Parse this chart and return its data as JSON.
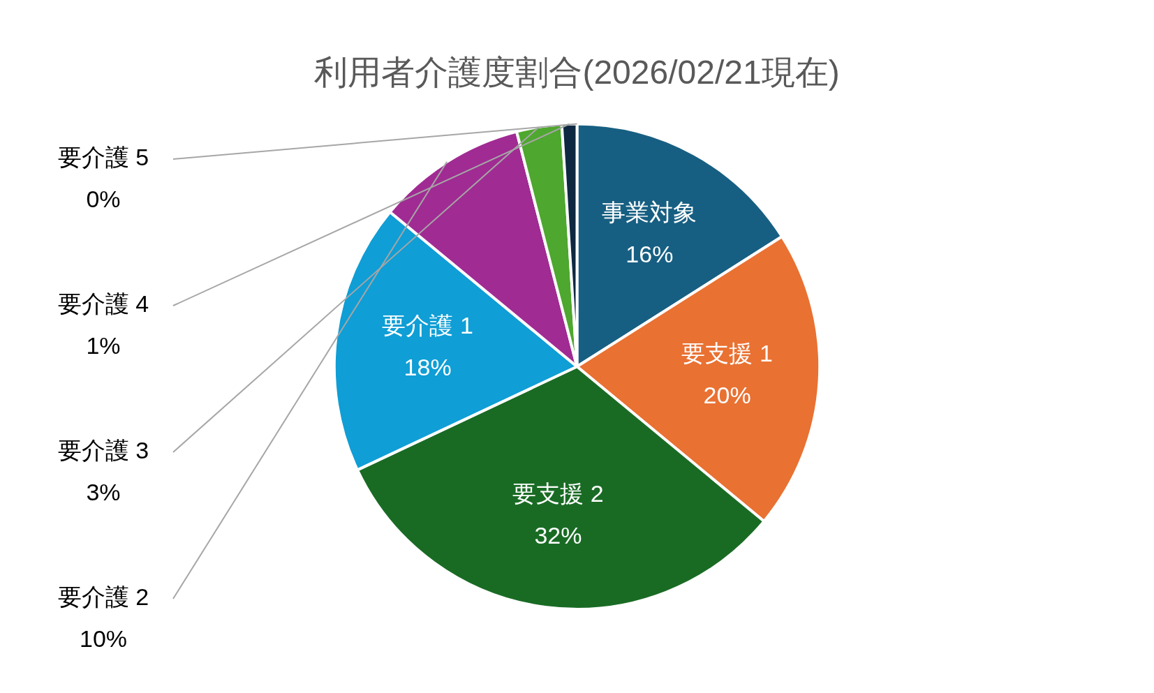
{
  "chart_data": {
    "type": "pie",
    "title": "利用者介護度割合(2026/02/21現在)",
    "categories": [
      "事業対象",
      "要支援 1",
      "要支援 2",
      "要介護 1",
      "要介護 2",
      "要介護 3",
      "要介護 4",
      "要介護 5"
    ],
    "values": [
      16,
      20,
      32,
      18,
      10,
      3,
      1,
      0
    ],
    "value_labels": [
      "16%",
      "20%",
      "32%",
      "18%",
      "10%",
      "3%",
      "1%",
      "0%"
    ],
    "colors": [
      "#175f82",
      "#e97132",
      "#196b24",
      "#0f9ed5",
      "#a02b93",
      "#4ea72e",
      "#0e2841",
      "#3b7d9c"
    ],
    "legend": false
  }
}
